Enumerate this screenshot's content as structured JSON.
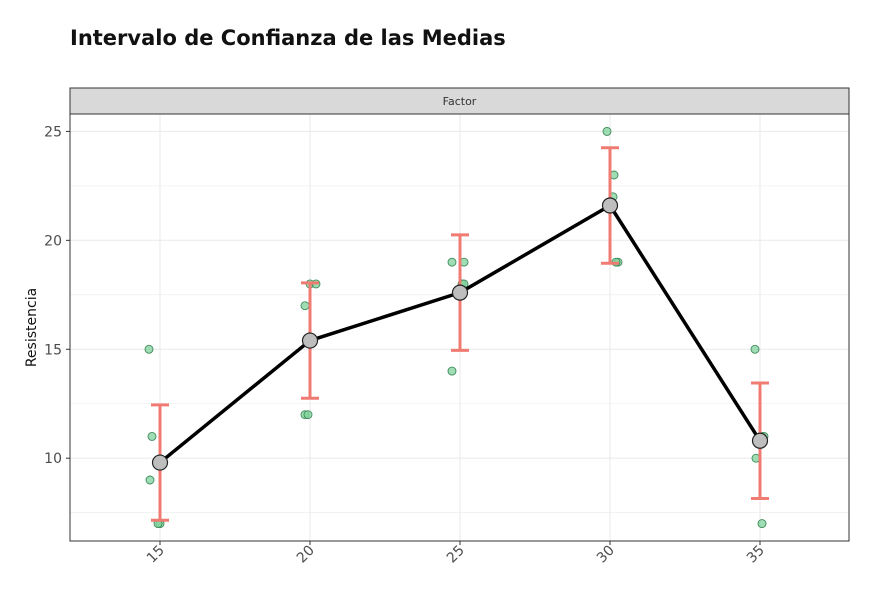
{
  "chart_data": {
    "type": "scatter",
    "title": "Intervalo de Confianza de las Medias",
    "strip_label": "Factor",
    "xlabel": "",
    "ylabel": "Resistencia",
    "categories": [
      "15",
      "20",
      "25",
      "30",
      "35"
    ],
    "y_ticks": [
      10,
      15,
      20,
      25
    ],
    "ylim": [
      6.2,
      25.8
    ],
    "grid": true,
    "observations": [
      {
        "category": "15",
        "values": [
          7,
          7,
          15,
          11,
          9
        ]
      },
      {
        "category": "20",
        "values": [
          12,
          17,
          12,
          18,
          18
        ]
      },
      {
        "category": "25",
        "values": [
          14,
          18,
          18,
          19,
          19
        ]
      },
      {
        "category": "30",
        "values": [
          19,
          25,
          22,
          19,
          23
        ]
      },
      {
        "category": "35",
        "values": [
          7,
          10,
          11,
          15,
          11
        ]
      }
    ],
    "means": [
      9.8,
      15.4,
      17.6,
      21.6,
      10.8
    ],
    "ci_lower": [
      7.15,
      12.75,
      14.95,
      18.95,
      8.15
    ],
    "ci_upper": [
      12.45,
      18.05,
      20.25,
      24.25,
      13.45
    ],
    "colors": {
      "points_fill": "#7fd19b",
      "points_stroke": "#3f8a5a",
      "error_bar": "#f07b72",
      "mean_line": "#000000",
      "mean_point_fill": "#bebebe",
      "strip_fill": "#d9d9d9",
      "grid": "#ebebeb"
    }
  }
}
